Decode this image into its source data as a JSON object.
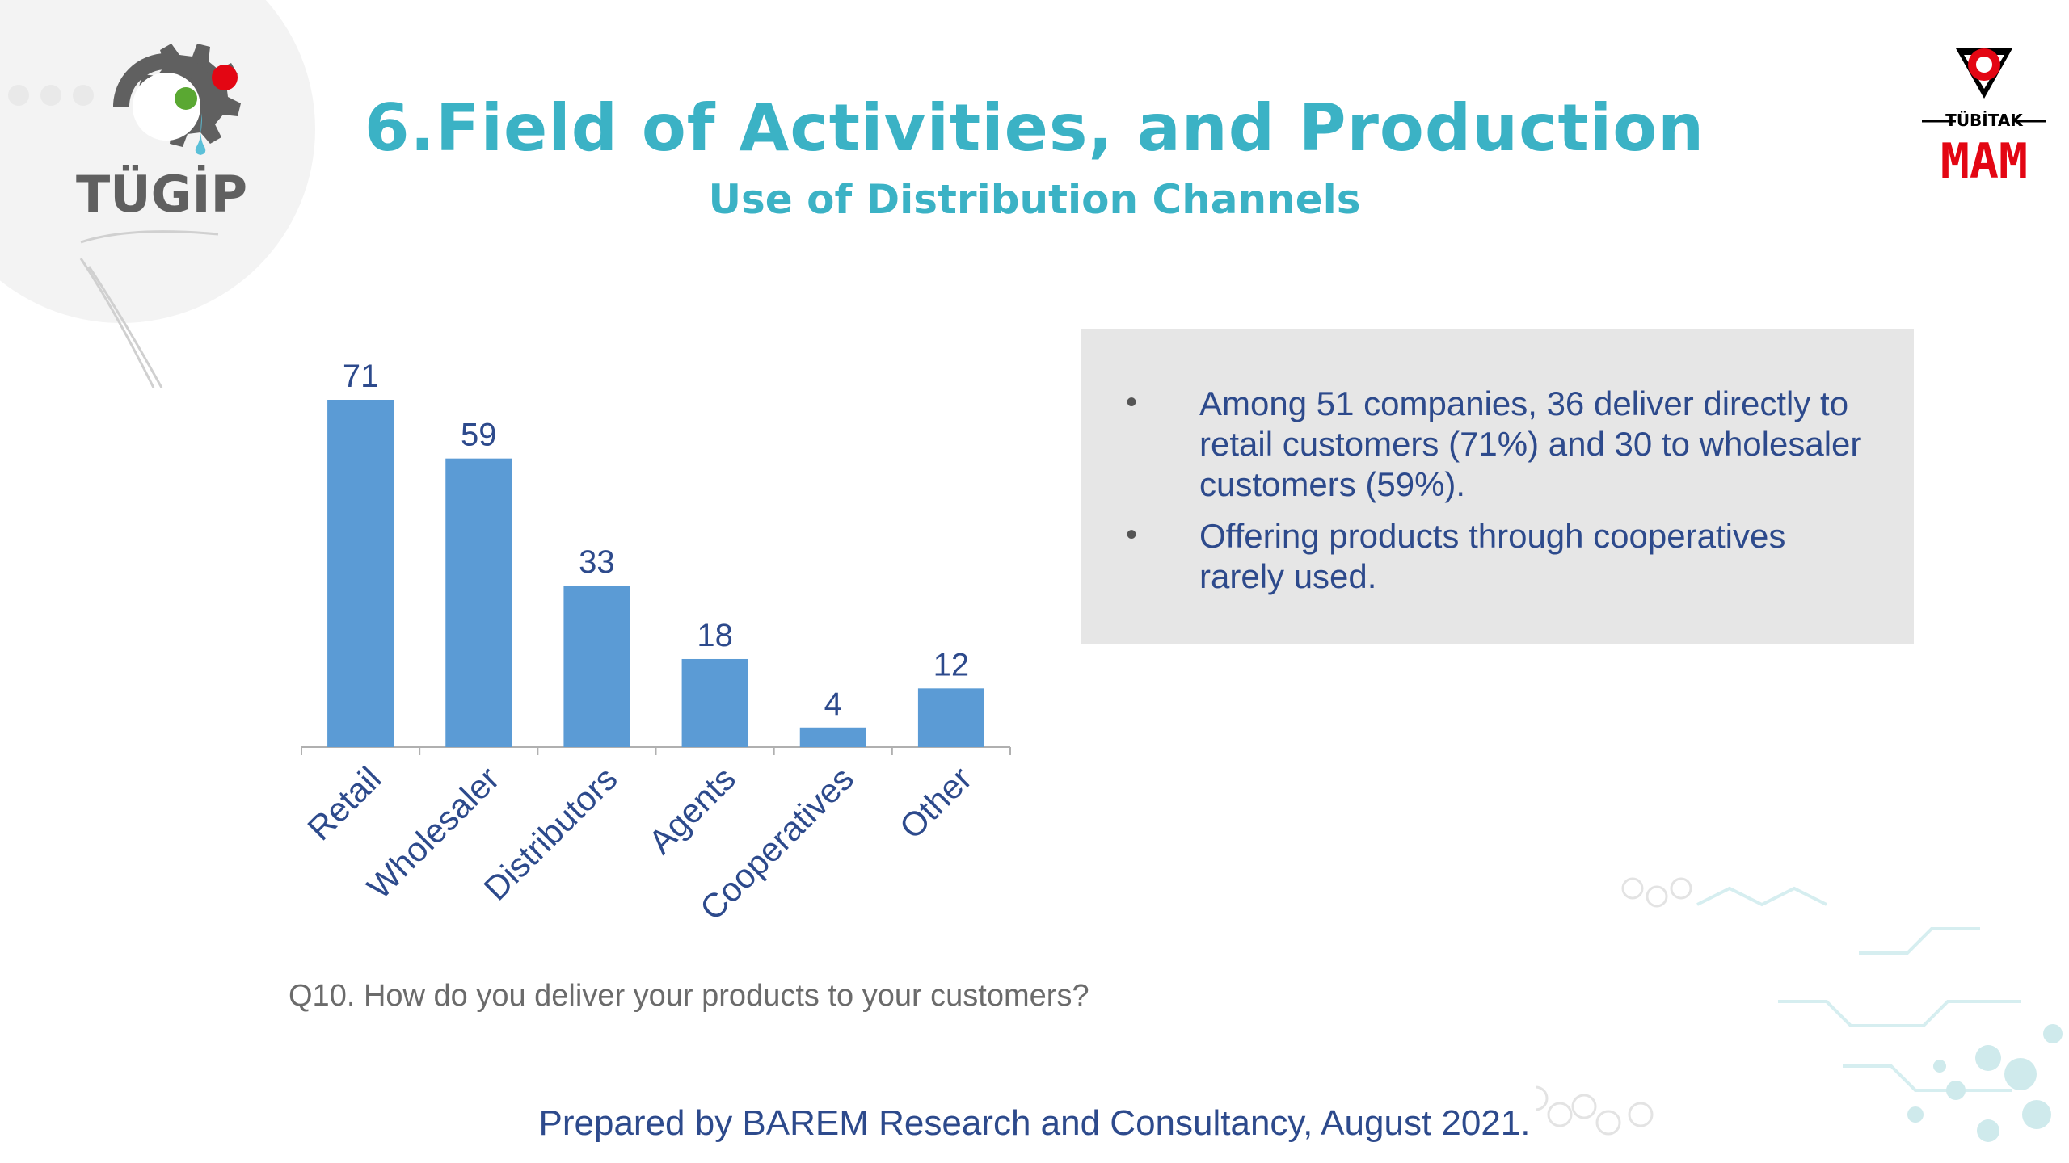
{
  "header": {
    "title": "6.Field of Activities, and Production",
    "subtitle": "Use of Distribution Channels"
  },
  "logos": {
    "left_text": "TÜGİP",
    "right_top_text": "TÜBİTAK",
    "right_text": "MAM"
  },
  "colors": {
    "teal": "#3bb2c5",
    "bar": "#5b9bd5",
    "navy": "#2d4a8c",
    "panel": "#e6e6e6",
    "red": "#e30613"
  },
  "chart_data": {
    "type": "bar",
    "categories": [
      "Retail",
      "Wholesaler",
      "Distributors",
      "Agents",
      "Cooperatives",
      "Other"
    ],
    "values": [
      71,
      59,
      33,
      18,
      4,
      12
    ],
    "title": "",
    "xlabel": "",
    "ylabel": "",
    "ylim": [
      0,
      71
    ],
    "grid": false,
    "legend": "none"
  },
  "notes": {
    "bullets": [
      "Among 51 companies, 36 deliver directly to retail customers (71%) and 30 to wholesaler customers (59%).",
      "Offering products through cooperatives rarely used."
    ]
  },
  "question": "Q10. How do you deliver your products to your customers?",
  "footer": "Prepared by BAREM Research and Consultancy, August 2021."
}
